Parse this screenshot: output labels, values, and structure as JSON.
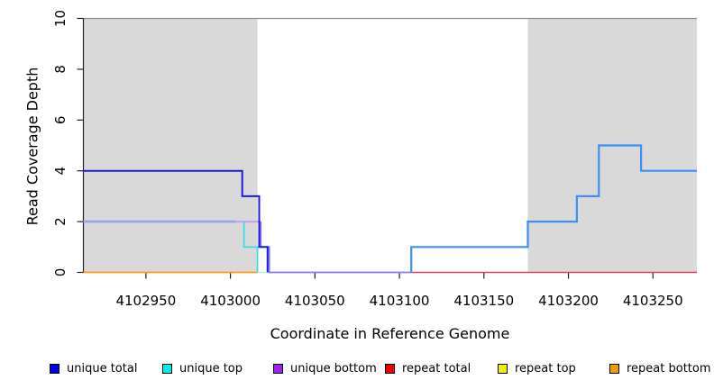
{
  "chart_data": {
    "type": "line",
    "step": true,
    "title": "",
    "xlabel": "Coordinate in Reference Genome",
    "ylabel": "Read Coverage Depth",
    "xlim": [
      4102913,
      4103276
    ],
    "ylim": [
      0,
      10
    ],
    "x_ticks": [
      4102950,
      4103000,
      4103050,
      4103100,
      4103150,
      4103200,
      4103250
    ],
    "y_ticks": [
      0,
      2,
      4,
      6,
      8,
      10
    ],
    "grid": false,
    "background_color": "#ffffff",
    "shaded_region_color": "#d9d9d9",
    "plot_top_line_color": "#8f8f8f",
    "axis_color": "#222222",
    "shaded_regions": [
      {
        "x0": 4102913,
        "x1": 4103016
      },
      {
        "x0": 4103176,
        "x1": 4103276
      }
    ],
    "series": [
      {
        "name": "unique-top-bottom-overlap",
        "color": "#97a6ec",
        "width": 2.6,
        "points": [
          [
            4102913,
            2
          ],
          [
            4103003,
            2
          ]
        ]
      },
      {
        "name": "unique-bottom-over-top",
        "color": "#c9a3e8",
        "width": 2.2,
        "points": [
          [
            4103003,
            2
          ],
          [
            4103018,
            2
          ]
        ]
      },
      {
        "name": "unique-top",
        "color": "#2ae0e0",
        "width": 1.6,
        "points": [
          [
            4103008,
            2
          ],
          [
            4103008,
            1
          ],
          [
            4103016,
            1
          ],
          [
            4103016,
            0
          ]
        ]
      },
      {
        "name": "unique-top-zero-run",
        "color": "#b5f0dc",
        "width": 1.4,
        "points": [
          [
            4103016,
            0
          ],
          [
            4103022,
            0
          ]
        ]
      },
      {
        "name": "unique-bottom",
        "color": "#8b78f0",
        "width": 1.8,
        "points": [
          [
            4103018,
            2
          ],
          [
            4103018,
            1
          ],
          [
            4103023,
            1
          ],
          [
            4103023,
            0
          ],
          [
            4103107,
            0
          ]
        ]
      },
      {
        "name": "unique-total-left",
        "color": "#1c1cdd",
        "width": 2.0,
        "points": [
          [
            4102913,
            4
          ],
          [
            4103007,
            4
          ],
          [
            4103007,
            3
          ],
          [
            4103017,
            3
          ],
          [
            4103017,
            1
          ],
          [
            4103022,
            1
          ],
          [
            4103022,
            0
          ]
        ]
      },
      {
        "name": "repeat-bottom",
        "color": "#ff9912",
        "width": 1.8,
        "points": [
          [
            4102913,
            0
          ],
          [
            4103016,
            0
          ]
        ]
      },
      {
        "name": "repeat-total",
        "color": "#e23b60",
        "width": 1.5,
        "points": [
          [
            4103107,
            0
          ],
          [
            4103276,
            0
          ]
        ]
      },
      {
        "name": "unique-total-right",
        "color": "#3d8ff7",
        "width": 2.2,
        "points": [
          [
            4103107,
            0
          ],
          [
            4103107,
            1
          ],
          [
            4103176,
            1
          ],
          [
            4103176,
            2
          ],
          [
            4103205,
            2
          ],
          [
            4103205,
            3
          ],
          [
            4103218,
            3
          ],
          [
            4103218,
            5
          ],
          [
            4103243,
            5
          ],
          [
            4103243,
            4
          ],
          [
            4103276,
            4
          ]
        ]
      }
    ],
    "legend": {
      "position": "bottom",
      "items": [
        {
          "label": "unique total",
          "color": "#0000ee"
        },
        {
          "label": "unique top",
          "color": "#00eeee"
        },
        {
          "label": "unique bottom",
          "color": "#a020f0"
        },
        {
          "label": "repeat total",
          "color": "#ee0000"
        },
        {
          "label": "repeat top",
          "color": "#f0f000"
        },
        {
          "label": "repeat bottom",
          "color": "#f59b00"
        }
      ]
    }
  }
}
